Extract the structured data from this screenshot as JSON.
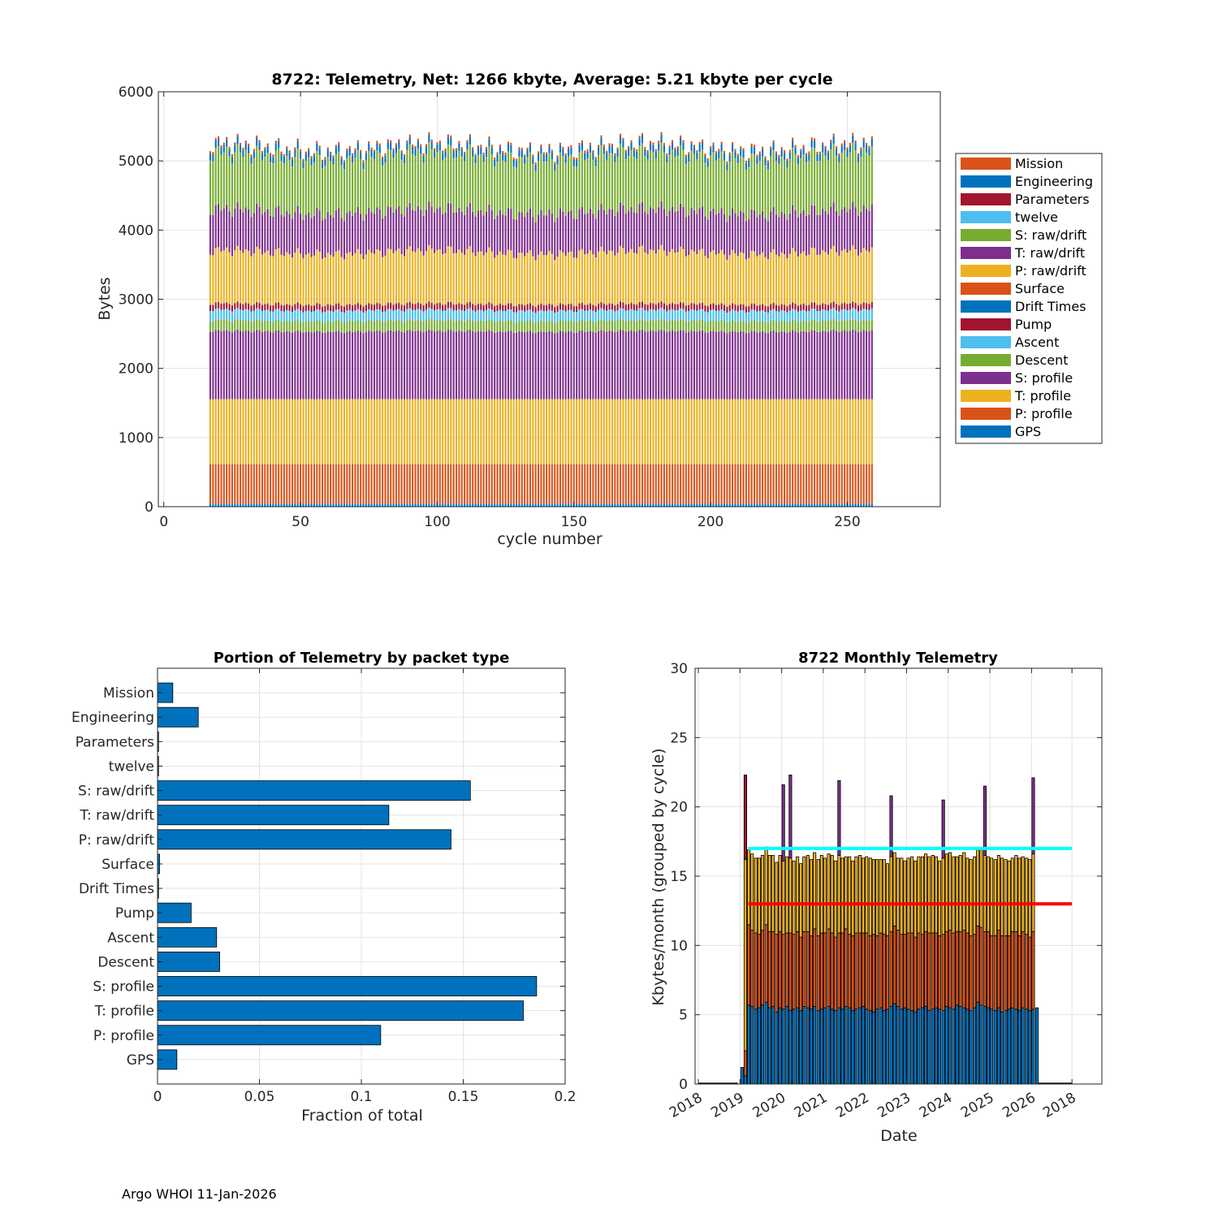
{
  "chart_data": [
    {
      "type": "bar",
      "stacked": true,
      "title": "8722: Telemetry, Net:   1266 kbyte,  Average: 5.21 kbyte per cycle",
      "xlabel": "cycle number",
      "ylabel": "Bytes",
      "xlim": [
        -2,
        284
      ],
      "ylim": [
        0,
        6000
      ],
      "xticks": [
        "0",
        "50",
        "100",
        "150",
        "200",
        "250"
      ],
      "yticks": [
        "0",
        "1000",
        "2000",
        "3000",
        "4000",
        "5000",
        "6000"
      ],
      "cycles": [
        17,
        259
      ],
      "grid": true,
      "legend_placement": "outside-right",
      "series": [
        {
          "name": "GPS",
          "color": "#0072BD",
          "approx_bytes_per_cycle": 45
        },
        {
          "name": "P: profile",
          "color": "#D95319",
          "approx_bytes_per_cycle": 570
        },
        {
          "name": "T: profile",
          "color": "#EDB120",
          "approx_bytes_per_cycle": 940
        },
        {
          "name": "S: profile",
          "color": "#7E2F8E",
          "approx_bytes_per_cycle": 980
        },
        {
          "name": "Descent",
          "color": "#77AC30",
          "approx_bytes_per_cycle": 155
        },
        {
          "name": "Ascent",
          "color": "#4DBEEE",
          "approx_bytes_per_cycle": 150
        },
        {
          "name": "Pump",
          "color": "#A2142F",
          "approx_bytes_per_cycle": 85
        },
        {
          "name": "Drift Times",
          "color": "#0072BD",
          "approx_bytes_per_cycle": 5
        },
        {
          "name": "Surface",
          "color": "#D95319",
          "approx_bytes_per_cycle": 5
        },
        {
          "name": "P: raw/drift",
          "color": "#EDB120",
          "approx_bytes_per_cycle": 740
        },
        {
          "name": "T: raw/drift",
          "color": "#7E2F8E",
          "approx_bytes_per_cycle": 590
        },
        {
          "name": "S: raw/drift",
          "color": "#77AC30",
          "approx_bytes_per_cycle": 790
        },
        {
          "name": "twelve",
          "color": "#4DBEEE",
          "approx_bytes_per_cycle": 5
        },
        {
          "name": "Parameters",
          "color": "#A2142F",
          "approx_bytes_per_cycle": 5
        },
        {
          "name": "Engineering",
          "color": "#0072BD",
          "approx_bytes_per_cycle": 100
        },
        {
          "name": "Mission",
          "color": "#D95319",
          "approx_bytes_per_cycle": 35
        }
      ],
      "legend_order": [
        "Mission",
        "Engineering",
        "Parameters",
        "twelve",
        "S: raw/drift",
        "T: raw/drift",
        "P: raw/drift",
        "Surface",
        "Drift Times",
        "Pump",
        "Ascent",
        "Descent",
        "S: profile",
        "T: profile",
        "P: profile",
        "GPS"
      ]
    },
    {
      "type": "bar",
      "orientation": "horizontal",
      "title": "Portion of Telemetry by packet type",
      "xlabel": "Fraction of total",
      "ylabel": "",
      "xlim": [
        0,
        0.2
      ],
      "xticks": [
        "0",
        "0.05",
        "0.1",
        "0.15",
        "0.2"
      ],
      "grid": true,
      "color": "#0072BD",
      "categories": [
        "GPS",
        "P: profile",
        "T: profile",
        "S: profile",
        "Descent",
        "Ascent",
        "Pump",
        "Drift Times",
        "Surface",
        "P: raw/drift",
        "T: raw/drift",
        "S: raw/drift",
        "twelve",
        "Parameters",
        "Engineering",
        "Mission"
      ],
      "values": [
        0.0095,
        0.1095,
        0.1795,
        0.186,
        0.0305,
        0.029,
        0.0165,
        0.0005,
        0.001,
        0.144,
        0.1135,
        0.1535,
        0.0005,
        0.0005,
        0.02,
        0.0075
      ]
    },
    {
      "type": "bar",
      "stacked": true,
      "title": "8722 Monthly Telemetry",
      "xlabel": "Date",
      "ylabel": "Kbytes/month (grouped by cycle)",
      "ylim": [
        0,
        30
      ],
      "yticks": [
        "0",
        "5",
        "10",
        "15",
        "20",
        "25",
        "30"
      ],
      "xticks": [
        "2018",
        "2019",
        "2020",
        "2021",
        "2022",
        "2023",
        "2024",
        "2025",
        "2026",
        "2018"
      ],
      "grid": true,
      "reference_lines": [
        {
          "value": 17,
          "color": "#00FFFF"
        },
        {
          "value": 13,
          "color": "#FF0000"
        }
      ],
      "bar_dates": [
        2019.05,
        2019.13,
        2019.21,
        2019.29,
        2019.38,
        2019.46,
        2019.54,
        2019.63,
        2019.71,
        2019.79,
        2019.88,
        2019.96,
        2020.04,
        2020.13,
        2020.21,
        2020.29,
        2020.38,
        2020.46,
        2020.54,
        2020.63,
        2020.71,
        2020.79,
        2020.88,
        2020.96,
        2021.04,
        2021.13,
        2021.21,
        2021.29,
        2021.38,
        2021.46,
        2021.54,
        2021.63,
        2021.71,
        2021.79,
        2021.88,
        2021.96,
        2022.04,
        2022.13,
        2022.21,
        2022.29,
        2022.38,
        2022.46,
        2022.54,
        2022.63,
        2022.71,
        2022.79,
        2022.88,
        2022.96,
        2023.04,
        2023.13,
        2023.21,
        2023.29,
        2023.38,
        2023.46,
        2023.54,
        2023.63,
        2023.71,
        2023.79,
        2023.88,
        2023.96,
        2024.04,
        2024.13,
        2024.21,
        2024.29,
        2024.38,
        2024.46,
        2024.54,
        2024.63,
        2024.71,
        2024.79,
        2024.88,
        2024.96,
        2025.04,
        2025.13,
        2025.21,
        2025.29,
        2025.38,
        2025.46,
        2025.54,
        2025.63,
        2025.71,
        2025.79,
        2025.88,
        2025.96,
        2026.04,
        2026.13
      ],
      "series": [
        {
          "name": "blue",
          "color": "#0072BD",
          "values": [
            1.2,
            0.6,
            5.7,
            5.6,
            5.4,
            5.5,
            5.7,
            5.9,
            5.5,
            5.6,
            5.2,
            5.5,
            5.4,
            5.6,
            5.3,
            5.4,
            5.5,
            5.3,
            5.6,
            5.5,
            5.4,
            5.6,
            5.3,
            5.4,
            5.5,
            5.6,
            5.4,
            5.3,
            5.5,
            5.4,
            5.6,
            5.5,
            5.3,
            5.4,
            5.5,
            5.6,
            5.4,
            5.3,
            5.2,
            5.4,
            5.5,
            5.3,
            5.4,
            5.6,
            5.8,
            5.6,
            5.4,
            5.5,
            5.4,
            5.3,
            5.2,
            5.4,
            5.5,
            5.6,
            5.3,
            5.4,
            5.5,
            5.4,
            5.3,
            5.6,
            5.5,
            5.4,
            5.7,
            5.6,
            5.5,
            5.4,
            5.3,
            5.5,
            5.9,
            5.7,
            5.6,
            5.5,
            5.4,
            5.3,
            5.5,
            5.2,
            5.3,
            5.4,
            5.5,
            5.4,
            5.3,
            5.5,
            5.4,
            5.3,
            5.4,
            5.5
          ]
        },
        {
          "name": "orange",
          "color": "#D95319",
          "values": [
            0,
            1.8,
            5.8,
            5.5,
            5.5,
            5.3,
            5.4,
            5.6,
            5.5,
            5.4,
            5.6,
            5.5,
            5.4,
            5.3,
            5.6,
            5.4,
            5.5,
            5.3,
            5.4,
            5.5,
            5.3,
            5.6,
            5.4,
            5.5,
            5.4,
            5.6,
            5.5,
            5.3,
            5.4,
            5.5,
            5.6,
            5.3,
            5.4,
            5.5,
            5.4,
            5.3,
            5.5,
            5.4,
            5.6,
            5.3,
            5.4,
            5.5,
            5.3,
            5.4,
            5.6,
            5.5,
            5.4,
            5.3,
            5.5,
            5.6,
            5.4,
            5.5,
            5.3,
            5.4,
            5.6,
            5.5,
            5.4,
            5.3,
            5.5,
            5.4,
            5.6,
            5.5,
            5.3,
            5.4,
            5.6,
            5.5,
            5.4,
            5.3,
            5.5,
            5.6,
            5.4,
            5.5,
            5.3,
            5.4,
            5.6,
            5.5,
            5.4,
            5.3,
            5.5,
            5.6,
            5.4,
            5.5,
            5.4,
            5.3,
            5.6,
            0
          ]
        },
        {
          "name": "yellow",
          "color": "#EDB120",
          "values": [
            0,
            13.8,
            5.4,
            5.5,
            5.4,
            5.5,
            5.4,
            5.6,
            5.5,
            5.5,
            5.2,
            5.5,
            5.3,
            5.5,
            5.4,
            5.3,
            5.4,
            5.3,
            5.4,
            5.5,
            5.5,
            5.5,
            5.5,
            5.6,
            5.4,
            5.4,
            5.6,
            5.5,
            5.6,
            5.4,
            5.2,
            5.6,
            5.4,
            5.5,
            5.6,
            5.4,
            5.5,
            5.6,
            5.4,
            5.5,
            5.3,
            5.4,
            5.2,
            5.4,
            5.3,
            5.2,
            5.5,
            5.3,
            5.4,
            5.5,
            5.5,
            5.5,
            5.6,
            5.6,
            5.5,
            5.6,
            5.5,
            5.4,
            5.5,
            5.6,
            5.6,
            5.5,
            5.4,
            5.5,
            5.6,
            5.4,
            5.5,
            5.6,
            5.5,
            5.6,
            5.5,
            5.4,
            5.6,
            5.5,
            5.4,
            5.6,
            5.5,
            5.4,
            5.3,
            5.5,
            5.6,
            5.4,
            5.5,
            5.6,
            5.6,
            0
          ]
        },
        {
          "name": "purple",
          "color": "#7E2F8E",
          "values": [
            0,
            0,
            0,
            0,
            0,
            0,
            0,
            0,
            0,
            0,
            0,
            0,
            5.5,
            0,
            6.0,
            0,
            0,
            0,
            0,
            0,
            0,
            0,
            0,
            0,
            0,
            0,
            0,
            0,
            5.4,
            0,
            0,
            0,
            0,
            0,
            0,
            0,
            0,
            0,
            0,
            0,
            0,
            0,
            0,
            4.4,
            0,
            0,
            0,
            0,
            0,
            0,
            0,
            0,
            0,
            0,
            0,
            0,
            0,
            0,
            4.2,
            0,
            0,
            0,
            0,
            0,
            0,
            0,
            0,
            0,
            0,
            0,
            5.0,
            0,
            0,
            0,
            0,
            0,
            0,
            0,
            0,
            0,
            0,
            0,
            0,
            0,
            5.5,
            0
          ]
        },
        {
          "name": "red",
          "color": "#A2142F",
          "values": [
            0,
            6.1,
            0,
            0,
            0,
            0,
            0,
            0,
            0,
            0,
            0,
            0,
            0,
            0,
            0,
            0,
            0,
            0,
            0,
            0,
            0,
            0,
            0,
            0,
            0,
            0,
            0,
            0,
            0,
            0,
            0,
            0,
            0,
            0,
            0,
            0,
            0,
            0,
            0,
            0,
            0,
            0,
            0,
            0,
            0,
            0,
            0,
            0,
            0,
            0,
            0,
            0,
            0,
            0,
            0,
            0,
            0,
            0,
            0,
            0,
            0,
            0,
            0,
            0,
            0,
            0,
            0,
            0,
            0,
            0,
            0,
            0,
            0,
            0,
            0,
            0,
            0,
            0,
            0,
            0,
            0,
            0,
            0,
            0,
            0,
            0
          ]
        },
        {
          "name": "cyan",
          "color": "#4DBEEE",
          "values": [
            0,
            0,
            0,
            0,
            0,
            0,
            0,
            0,
            0,
            0,
            0,
            0,
            0,
            0,
            0,
            0,
            0,
            0,
            0,
            0,
            0,
            0,
            0,
            0,
            0,
            0,
            0,
            0,
            0,
            0,
            0,
            0,
            0,
            0,
            0,
            0,
            0,
            0,
            0,
            0,
            0,
            0,
            0,
            0,
            0,
            0,
            0,
            0,
            0,
            0,
            0,
            0,
            0,
            0,
            0,
            0,
            0,
            0,
            0,
            0,
            0,
            0,
            0,
            0,
            0,
            0,
            0,
            0,
            0,
            0,
            0,
            0,
            0,
            0,
            0,
            0,
            0,
            0,
            0,
            0,
            0,
            0,
            0,
            0,
            0,
            0
          ]
        }
      ]
    }
  ],
  "footer": "Argo WHOI 11-Jan-2026"
}
